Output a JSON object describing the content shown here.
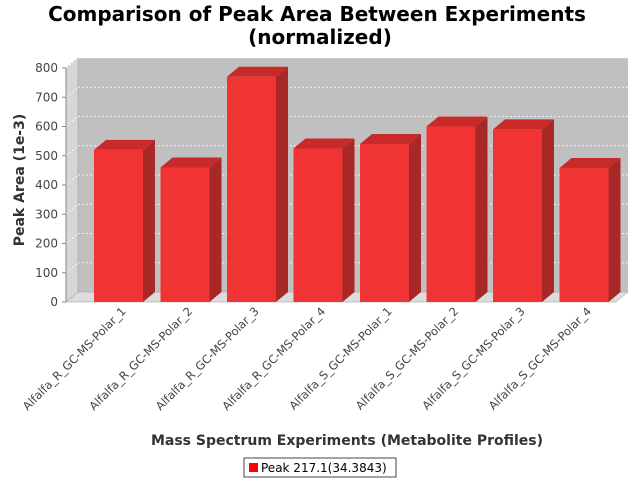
{
  "chart_data": {
    "type": "bar",
    "title_line1": "Comparison of Peak Area Between Experiments",
    "title_line2": "(normalized)",
    "xlabel": "Mass Spectrum Experiments (Metabolite Profiles)",
    "ylabel": "Peak Area (1e-3)",
    "ylim": [
      0,
      800
    ],
    "yticks": [
      0,
      100,
      200,
      300,
      400,
      500,
      600,
      700,
      800
    ],
    "categories": [
      "Alfalfa_R_GC-MS-Polar_1",
      "Alfalfa_R_GC-MS-Polar_2",
      "Alfalfa_R_GC-MS-Polar_3",
      "Alfalfa_R_GC-MS-Polar_4",
      "Alfalfa_S_GC-MS-Polar_1",
      "Alfalfa_S_GC-MS-Polar_2",
      "Alfalfa_S_GC-MS-Polar_3",
      "Alfalfa_S_GC-MS-Polar_4"
    ],
    "series": [
      {
        "name": "Peak 217.1(34.3843)",
        "values": [
          520,
          460,
          770,
          525,
          540,
          600,
          590,
          458
        ]
      }
    ],
    "grid": true,
    "legend_position": "bottom",
    "colors": {
      "bar_front": "#f03434",
      "bar_top": "#c82a2a",
      "bar_side": "#a82828",
      "plot_bg": "#c0c0c0",
      "wall_left": "#d6d6d6",
      "floor": "#dcdcdc"
    }
  }
}
